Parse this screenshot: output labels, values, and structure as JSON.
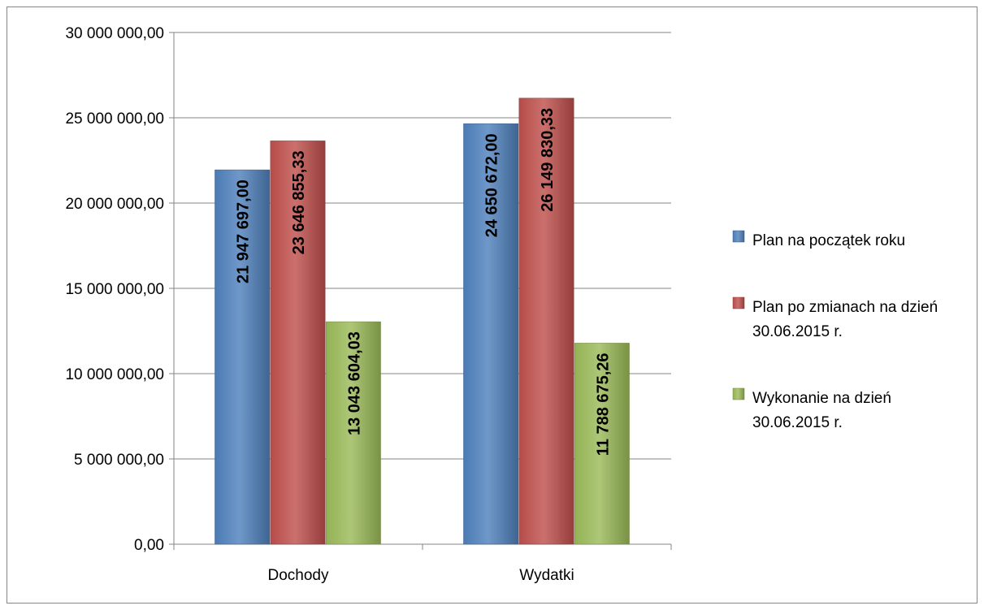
{
  "chart_data": {
    "type": "bar",
    "categories": [
      "Dochody",
      "Wydatki"
    ],
    "series": [
      {
        "name": "Plan na początek roku",
        "values": [
          21947697.0,
          24650672.0
        ],
        "data_labels": [
          "21 947 697,00",
          "24 650 672,00"
        ],
        "color": "#4f81bd"
      },
      {
        "name": "Plan po zmianach na dzień 30.06.2015 r.",
        "name_lines": [
          "Plan po zmianach na dzień",
          "30.06.2015 r."
        ],
        "values": [
          23646855.33,
          26149830.33
        ],
        "data_labels": [
          "23 646 855,33",
          "26 149 830,33"
        ],
        "color": "#c0504d"
      },
      {
        "name": "Wykonanie na dzień 30.06.2015 r.",
        "name_lines": [
          "Wykonanie na dzień",
          "30.06.2015 r."
        ],
        "values": [
          13043604.03,
          11788675.26
        ],
        "data_labels": [
          "13 043 604,03",
          "11 788 675,26"
        ],
        "color": "#9bbb59"
      }
    ],
    "y_ticks": [
      0,
      5000000,
      10000000,
      15000000,
      20000000,
      25000000,
      30000000
    ],
    "y_tick_labels": [
      "0,00",
      "5 000 000,00",
      "10 000 000,00",
      "15 000 000,00",
      "20 000 000,00",
      "25 000 000,00",
      "30 000 000,00"
    ],
    "ylim": [
      0,
      30000000
    ],
    "grid": true,
    "legend_position": "right",
    "title": "",
    "xlabel": "",
    "ylabel": ""
  }
}
